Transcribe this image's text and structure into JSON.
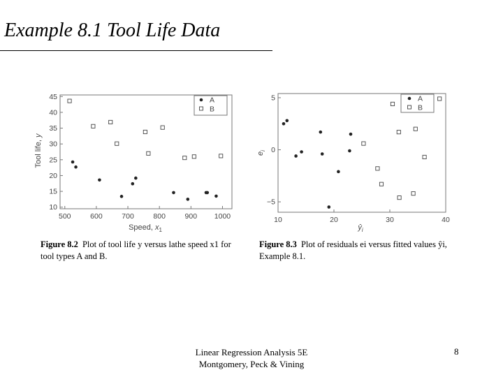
{
  "slide": {
    "title": "Example 8.1 Tool Life Data",
    "footer_line1": "Linear Regression Analysis 5E",
    "footer_line2": "Montgomery, Peck & Vining",
    "page_number": "8"
  },
  "figures": [
    {
      "caption_label": "Figure 8.2",
      "caption_text": "Plot of tool life y versus lathe speed x1 for tool types A and B."
    },
    {
      "caption_label": "Figure 8.3",
      "caption_text": "Plot of residuals ei versus fitted values ŷi, Example 8.1."
    }
  ],
  "chart_data": [
    {
      "type": "scatter",
      "xlabel": "Speed, x1",
      "ylabel": "Tool life, y",
      "xlim": [
        485,
        1030
      ],
      "ylim": [
        9.5,
        45.5
      ],
      "xticks": [
        500,
        600,
        700,
        800,
        900,
        1000
      ],
      "yticks": [
        10,
        15,
        20,
        25,
        30,
        35,
        40,
        45
      ],
      "legend_position": "top-right",
      "grid": false,
      "series": [
        {
          "name": "A",
          "marker": "filled-circle",
          "points": [
            [
              525,
              24.3
            ],
            [
              535,
              22.7
            ],
            [
              610,
              18.6
            ],
            [
              680,
              13.4
            ],
            [
              715,
              17.4
            ],
            [
              725,
              19.2
            ],
            [
              845,
              14.6
            ],
            [
              890,
              12.5
            ],
            [
              948,
              14.6
            ],
            [
              952,
              14.6
            ],
            [
              980,
              13.5
            ]
          ]
        },
        {
          "name": "B",
          "marker": "open-square",
          "points": [
            [
              515,
              43.6
            ],
            [
              590,
              35.6
            ],
            [
              645,
              36.9
            ],
            [
              665,
              30.1
            ],
            [
              755,
              33.8
            ],
            [
              765,
              27.0
            ],
            [
              810,
              35.2
            ],
            [
              880,
              25.6
            ],
            [
              910,
              26.0
            ],
            [
              995,
              26.2
            ]
          ]
        }
      ]
    },
    {
      "type": "scatter",
      "xlabel": "ŷi",
      "ylabel": "ei",
      "xlim": [
        10,
        40
      ],
      "ylim": [
        -6,
        5.4
      ],
      "xticks": [
        10,
        20,
        30,
        40
      ],
      "yticks": [
        -5,
        0,
        5
      ],
      "legend_position": "top-right",
      "grid": false,
      "series": [
        {
          "name": "A",
          "marker": "filled-circle",
          "points": [
            [
              11.0,
              2.5
            ],
            [
              11.6,
              2.8
            ],
            [
              13.2,
              -0.6
            ],
            [
              14.2,
              -0.2
            ],
            [
              17.6,
              1.7
            ],
            [
              17.9,
              -0.4
            ],
            [
              19.1,
              -5.5
            ],
            [
              20.8,
              -2.1
            ],
            [
              22.8,
              -0.1
            ],
            [
              23.0,
              1.5
            ]
          ]
        },
        {
          "name": "B",
          "marker": "open-square",
          "points": [
            [
              25.3,
              0.6
            ],
            [
              27.8,
              -1.8
            ],
            [
              28.5,
              -3.3
            ],
            [
              30.5,
              4.4
            ],
            [
              31.6,
              1.7
            ],
            [
              31.7,
              -4.6
            ],
            [
              34.2,
              -4.2
            ],
            [
              34.6,
              2.0
            ],
            [
              36.2,
              -0.7
            ],
            [
              38.9,
              4.9
            ]
          ]
        }
      ]
    }
  ]
}
